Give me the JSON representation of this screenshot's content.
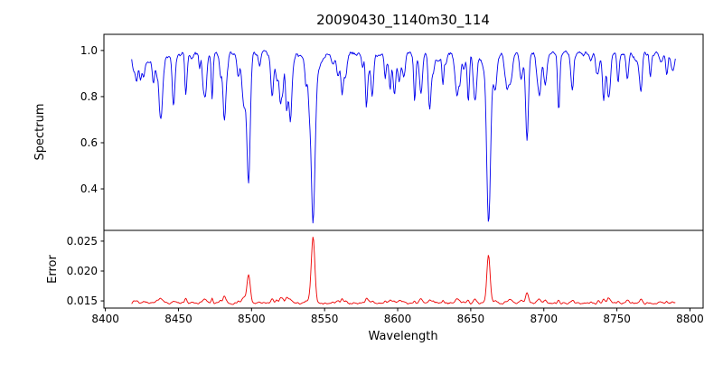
{
  "chart_data": {
    "type": "line",
    "title": "20090430_1140m30_114",
    "xlabel": "Wavelength",
    "xlim": [
      8399,
      8809
    ],
    "xticks": [
      8400,
      8450,
      8500,
      8550,
      8600,
      8650,
      8700,
      8750,
      8800
    ],
    "xtick_labels": [
      "8400",
      "8450",
      "8500",
      "8550",
      "8600",
      "8650",
      "8700",
      "8750",
      "8800"
    ],
    "legend": "none",
    "grid": false,
    "panels": [
      {
        "name": "spectrum",
        "ylabel": "Spectrum",
        "color": "#0000ee",
        "ylim": [
          0.22,
          1.07
        ],
        "yticks": [
          0.4,
          0.6,
          0.8,
          1.0
        ],
        "ytick_labels": [
          "0.4",
          "0.6",
          "0.8",
          "1.0"
        ],
        "x_start": 8418,
        "x_end": 8790,
        "x_step": 0.5,
        "continuum": 0.985,
        "noise_amplitude": 0.016,
        "noise_seed": 42,
        "weak_line_count": 110,
        "weak_line_depth_range": [
          0.02,
          0.13
        ],
        "weak_line_sigma_range": [
          0.5,
          1.2
        ],
        "absorption_lines": [
          {
            "center": 8424.0,
            "depth": 0.1,
            "sigma": 0.8
          },
          {
            "center": 8433.0,
            "depth": 0.12,
            "sigma": 0.8
          },
          {
            "center": 8438.2,
            "depth": 0.26,
            "sigma": 0.9
          },
          {
            "center": 8446.5,
            "depth": 0.13,
            "sigma": 0.8
          },
          {
            "center": 8468.5,
            "depth": 0.17,
            "sigma": 0.9
          },
          {
            "center": 8498.0,
            "depth": 0.55,
            "sigma": 1.1
          },
          {
            "center": 8514.1,
            "depth": 0.19,
            "sigma": 0.9
          },
          {
            "center": 8526.7,
            "depth": 0.14,
            "sigma": 0.8
          },
          {
            "center": 8542.1,
            "depth": 0.62,
            "sigma": 1.3
          },
          {
            "center": 8542.1,
            "depth": 0.1,
            "sigma": 4.0
          },
          {
            "center": 8582.3,
            "depth": 0.13,
            "sigma": 0.8
          },
          {
            "center": 8598.0,
            "depth": 0.1,
            "sigma": 0.8
          },
          {
            "center": 8611.8,
            "depth": 0.1,
            "sigma": 0.8
          },
          {
            "center": 8621.6,
            "depth": 0.12,
            "sigma": 0.8
          },
          {
            "center": 8648.5,
            "depth": 0.1,
            "sigma": 0.8
          },
          {
            "center": 8662.1,
            "depth": 0.61,
            "sigma": 1.2
          },
          {
            "center": 8662.1,
            "depth": 0.08,
            "sigma": 3.5
          },
          {
            "center": 8674.7,
            "depth": 0.11,
            "sigma": 0.7
          },
          {
            "center": 8688.6,
            "depth": 0.26,
            "sigma": 0.9
          },
          {
            "center": 8710.4,
            "depth": 0.1,
            "sigma": 0.7
          },
          {
            "center": 8736.0,
            "depth": 0.08,
            "sigma": 0.7
          },
          {
            "center": 8757.2,
            "depth": 0.11,
            "sigma": 0.8
          },
          {
            "center": 8772.9,
            "depth": 0.09,
            "sigma": 0.7
          }
        ]
      },
      {
        "name": "error",
        "ylabel": "Error",
        "color": "#ee0000",
        "ylim": [
          0.0138,
          0.0268
        ],
        "yticks": [
          0.015,
          0.02,
          0.025
        ],
        "ytick_labels": [
          "0.015",
          "0.020",
          "0.025"
        ],
        "baseline": 0.0146,
        "noise_amplitude": 0.00022,
        "noise_seed": 7,
        "weak_line_factor": 0.004,
        "peaks": [
          {
            "center": 8438.2,
            "amp": 0.0008,
            "sigma": 1.0
          },
          {
            "center": 8468.5,
            "amp": 0.0005,
            "sigma": 1.0
          },
          {
            "center": 8498.0,
            "amp": 0.0048,
            "sigma": 1.1
          },
          {
            "center": 8514.1,
            "amp": 0.0007,
            "sigma": 0.9
          },
          {
            "center": 8542.1,
            "amp": 0.0112,
            "sigma": 1.2
          },
          {
            "center": 8662.1,
            "amp": 0.0078,
            "sigma": 1.1
          },
          {
            "center": 8688.6,
            "amp": 0.0013,
            "sigma": 0.9
          },
          {
            "center": 8757.2,
            "amp": 0.0006,
            "sigma": 0.8
          }
        ]
      }
    ]
  }
}
